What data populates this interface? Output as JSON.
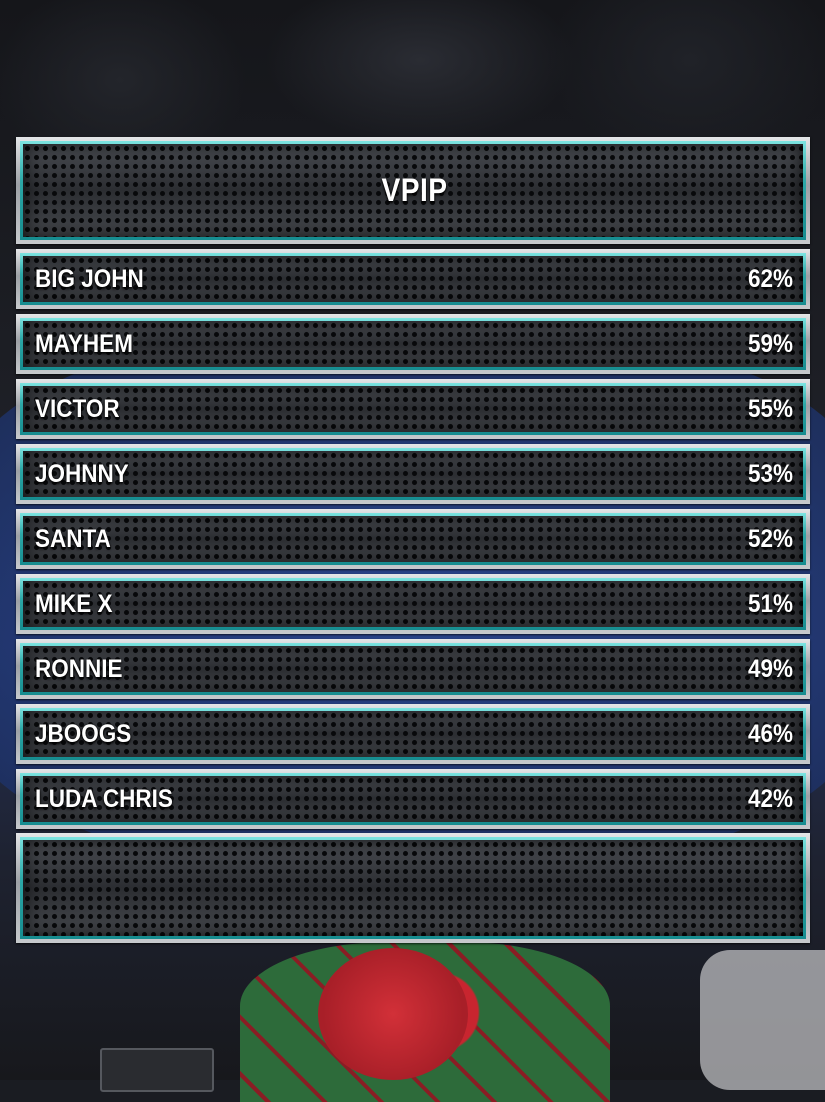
{
  "title": "VPIP",
  "players": [
    {
      "name": "BIG JOHN",
      "value": "62%"
    },
    {
      "name": "MAYHEM",
      "value": "59%"
    },
    {
      "name": "VICTOR",
      "value": "55%"
    },
    {
      "name": "JOHNNY",
      "value": "53%"
    },
    {
      "name": "SANTA",
      "value": "52%"
    },
    {
      "name": "MIKE X",
      "value": "51%"
    },
    {
      "name": "RONNIE",
      "value": "49%"
    },
    {
      "name": "JBOOGS",
      "value": "46%"
    },
    {
      "name": "LUDA CHRIS",
      "value": "42%"
    }
  ],
  "colors": {
    "accent_teal": "#2da9a8",
    "frame_silver": "#c7cacd",
    "panel_dark": "#2c2e33",
    "text": "#ffffff"
  }
}
